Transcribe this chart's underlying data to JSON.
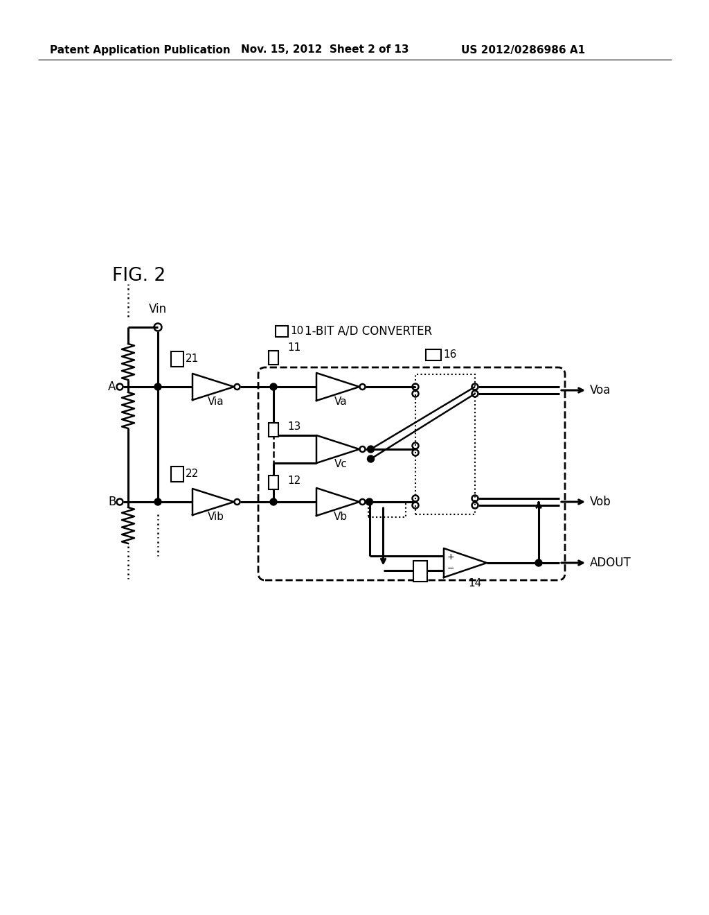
{
  "bg_color": "#ffffff",
  "header_left": "Patent Application Publication",
  "header_mid": "Nov. 15, 2012  Sheet 2 of 13",
  "header_right": "US 2012/0286986 A1",
  "fig_label": "FIG. 2",
  "converter_label": "1-BIT A/D CONVERTER",
  "lw": 1.8,
  "lw_thick": 2.2,
  "fs_header": 11,
  "fs_fig": 19,
  "fs_label": 12,
  "fs_small": 11
}
